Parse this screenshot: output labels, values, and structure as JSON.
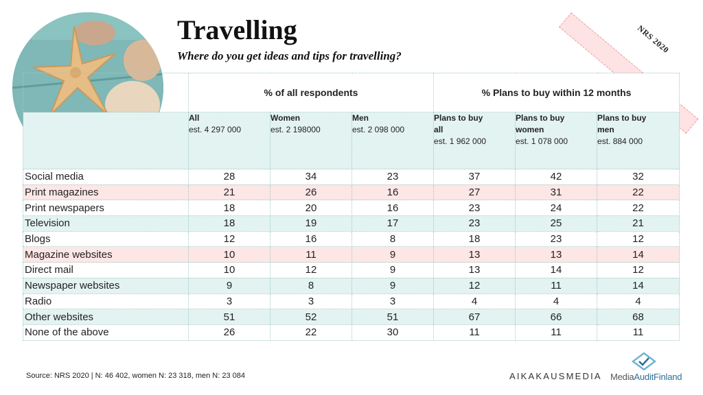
{
  "header": {
    "title": "Travelling",
    "subtitle": "Where do you get ideas and tips for travelling?",
    "ribbon": "NRS 2020"
  },
  "table": {
    "group_headers": [
      "% of all respondents",
      "% Plans to buy within 12 months"
    ],
    "columns": [
      {
        "line1": "All",
        "line2": "",
        "est": "est. 4 297 000"
      },
      {
        "line1": "Women",
        "line2": "",
        "est": "est. 2 198000"
      },
      {
        "line1": "Men",
        "line2": "",
        "est": "est. 2 098 000"
      },
      {
        "line1": "Plans to buy",
        "line2": "all",
        "est": "est. 1 962 000"
      },
      {
        "line1": "Plans to buy",
        "line2": "women",
        "est": "est. 1 078 000"
      },
      {
        "line1": "Plans to buy",
        "line2": "men",
        "est": "est. 884 000"
      }
    ],
    "rows": [
      {
        "label": "Social media",
        "values": [
          "28",
          "34",
          "23",
          "37",
          "42",
          "32"
        ],
        "shade": "white"
      },
      {
        "label": "Print magazines",
        "values": [
          "21",
          "26",
          "16",
          "27",
          "31",
          "22"
        ],
        "shade": "pink"
      },
      {
        "label": "Print newspapers",
        "values": [
          "18",
          "20",
          "16",
          "23",
          "24",
          "22"
        ],
        "shade": "white"
      },
      {
        "label": "Television",
        "values": [
          "18",
          "19",
          "17",
          "23",
          "25",
          "21"
        ],
        "shade": "green"
      },
      {
        "label": "Blogs",
        "values": [
          "12",
          "16",
          "8",
          "18",
          "23",
          "12"
        ],
        "shade": "white"
      },
      {
        "label": "Magazine websites",
        "values": [
          "10",
          "11",
          "9",
          "13",
          "13",
          "14"
        ],
        "shade": "pink"
      },
      {
        "label": "Direct mail",
        "values": [
          "10",
          "12",
          "9",
          "13",
          "14",
          "12"
        ],
        "shade": "white"
      },
      {
        "label": "Newspaper websites",
        "values": [
          "9",
          "8",
          "9",
          "12",
          "11",
          "14"
        ],
        "shade": "green"
      },
      {
        "label": "Radio",
        "values": [
          "3",
          "3",
          "3",
          "4",
          "4",
          "4"
        ],
        "shade": "white"
      },
      {
        "label": "Other websites",
        "values": [
          "51",
          "52",
          "51",
          "67",
          "66",
          "68"
        ],
        "shade": "green"
      },
      {
        "label": "None of the above",
        "values": [
          "26",
          "22",
          "30",
          "11",
          "11",
          "11"
        ],
        "shade": "white"
      }
    ]
  },
  "footer": {
    "source": "Source: NRS 2020 | N: 46 402, women N: 23 318, men N: 23 084",
    "logo1": "AIKAKAUSMEDIA",
    "logo2_part1": "Media",
    "logo2_part2": "AuditFinland"
  },
  "icons": {
    "photo": "seashell-starfish-photo",
    "logo2_icon": "media-audit-diamond-icon"
  },
  "colors": {
    "accent_green": "#e3f3f1",
    "accent_pink": "#fde6e6",
    "logo_blue": "#2b6f96"
  }
}
